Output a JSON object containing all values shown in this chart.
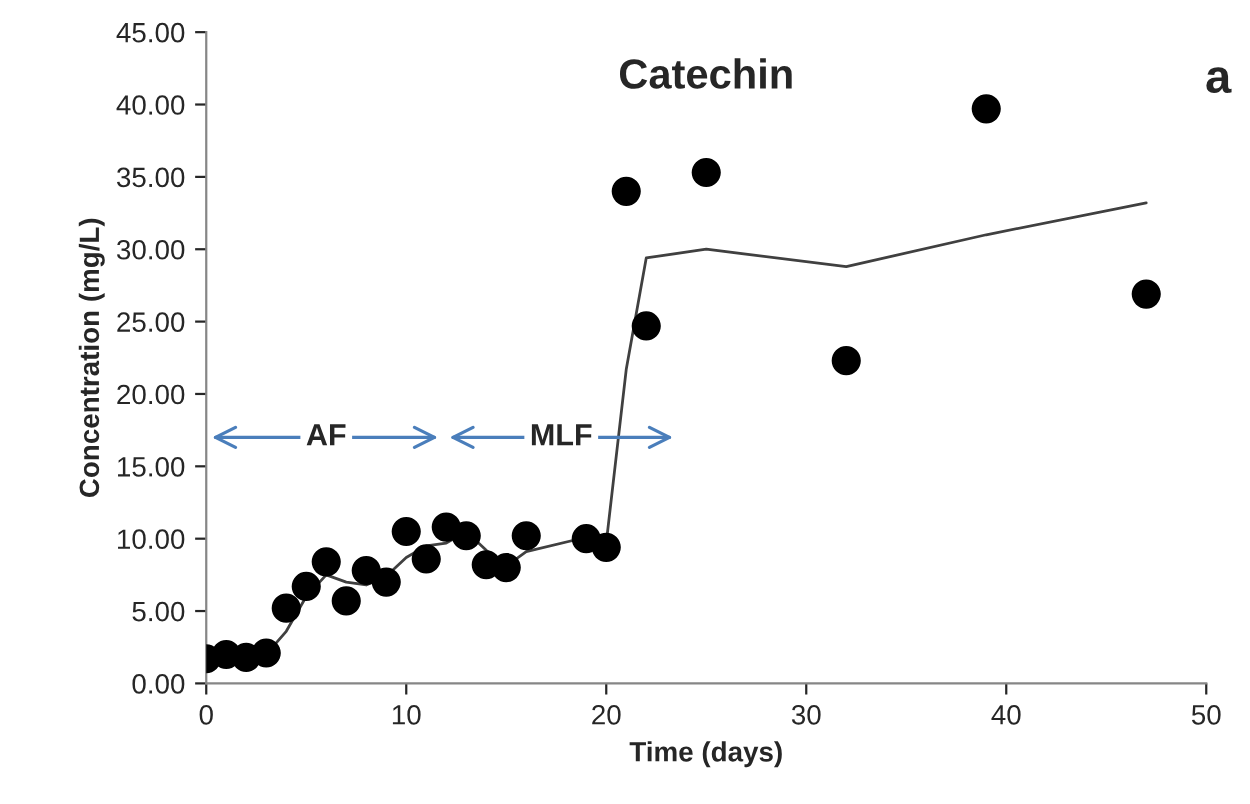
{
  "chart_data": {
    "type": "scatter",
    "title": "Catechin",
    "xlabel": "Time (days)",
    "ylabel": "Concentration (mg/L)",
    "annotations": [
      "a",
      {
        "text": "AF",
        "x": 6,
        "y": 17
      },
      {
        "text": "MLF",
        "x": 17.75,
        "y": 17
      }
    ],
    "series": [
      {
        "color": "#000000",
        "marker": "circle",
        "x": [
          0,
          1,
          2,
          3,
          4,
          5,
          6,
          7,
          8,
          9,
          10,
          11,
          12,
          13,
          14,
          15,
          16,
          19,
          20,
          21,
          22,
          25,
          32,
          39,
          47
        ],
        "values": [
          1.7,
          2.0,
          1.8,
          2.1,
          5.2,
          6.7,
          8.4,
          5.7,
          7.8,
          7.0,
          10.5,
          8.6,
          10.8,
          10.2,
          8.2,
          8.0,
          10.2,
          10.0,
          9.4,
          34.0,
          24.7,
          35.3,
          22.3,
          39.7,
          26.9
        ]
      },
      {
        "type": "line",
        "color": "#404040",
        "marker": "none",
        "line_style": "solid",
        "x": [
          0,
          1,
          2,
          3,
          4,
          5,
          6,
          7,
          8,
          9,
          10,
          11,
          12,
          13,
          14,
          15,
          16,
          19,
          20,
          21,
          22,
          25,
          32,
          39,
          47
        ],
        "values": [
          1.8,
          1.9,
          1.9,
          2.0,
          3.6,
          6.0,
          7.5,
          7.0,
          6.8,
          7.4,
          8.7,
          9.5,
          9.7,
          10.5,
          9.2,
          8.1,
          9.1,
          10.1,
          9.7,
          21.7,
          29.4,
          30.0,
          28.8,
          31.0,
          33.2
        ]
      }
    ],
    "xlim": [
      0,
      50
    ],
    "xticks": [
      0,
      10,
      20,
      30,
      40,
      50
    ],
    "ylim": [
      0,
      45
    ],
    "yticks": [
      {
        "value": 0,
        "label": "0.00"
      },
      {
        "value": 5,
        "label": "5.00"
      },
      {
        "value": 10,
        "label": "10.00"
      },
      {
        "value": 15,
        "label": "15.00"
      },
      {
        "value": 20,
        "label": "20.00"
      },
      {
        "value": 25,
        "label": "25.00"
      },
      {
        "value": 30,
        "label": "30.00"
      },
      {
        "value": 35,
        "label": "35.00"
      },
      {
        "value": 40,
        "label": "40.00"
      },
      {
        "value": 45,
        "label": "45.00"
      }
    ],
    "grid": false,
    "legend": false
  }
}
